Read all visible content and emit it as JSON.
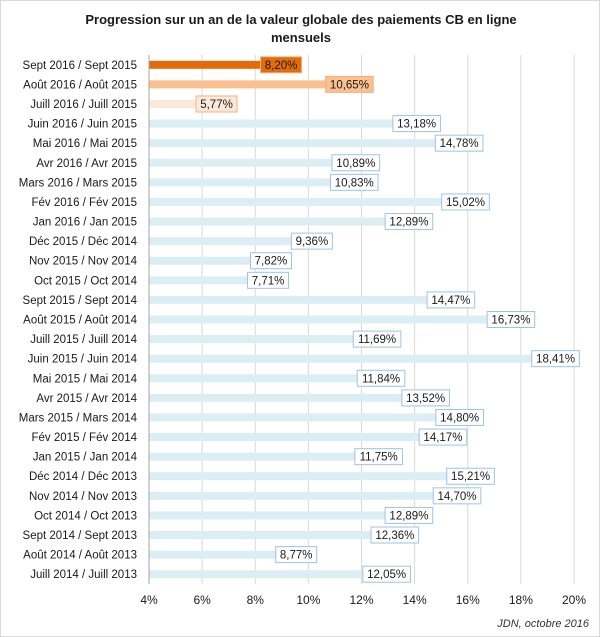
{
  "chart_data": {
    "type": "bar",
    "orientation": "horizontal",
    "title": "Progression sur un an de la valeur globale des paiements CB en ligne mensuels",
    "source": "JDN, octobre 2016",
    "xlabel": "",
    "ylabel": "",
    "xlim": [
      4,
      20
    ],
    "x_ticks": [
      "4%",
      "6%",
      "8%",
      "10%",
      "12%",
      "14%",
      "16%",
      "18%",
      "20%"
    ],
    "x_tick_values": [
      4,
      6,
      8,
      10,
      12,
      14,
      16,
      18,
      20
    ],
    "grid": "vertical",
    "legend": "none",
    "categories": [
      "Sept 2016 / Sept 2015",
      "Août 2016 / Août 2015",
      "Juill 2016 / Juill 2015",
      "Juin 2016 / Juin 2015",
      "Mai 2016 / Mai 2015",
      "Avr 2016 / Avr 2015",
      "Mars 2016 / Mars 2015",
      "Fév 2016 / Fév 2015",
      "Jan 2016 / Jan 2015",
      "Déc 2015 / Déc 2014",
      "Nov 2015 / Nov 2014",
      "Oct 2015 / Oct 2014",
      "Sept 2015 / Sept 2014",
      "Août 2015 / Août 2014",
      "Juill 2015 / Juill 2014",
      "Juin 2015 / Juin 2014",
      "Mai 2015 / Mai 2014",
      "Avr 2015 / Avr 2014",
      "Mars 2015 / Mars 2014",
      "Fév 2015 / Fév 2014",
      "Jan 2015 / Jan 2014",
      "Déc 2014 / Déc 2013",
      "Nov 2014 / Nov 2013",
      "Oct 2014 / Oct 2013",
      "Sept 2014 / Sept 2013",
      "Août 2014 / Août 2013",
      "Juill 2014 / Juill 2013"
    ],
    "values": [
      8.2,
      10.65,
      5.77,
      13.18,
      14.78,
      10.89,
      10.83,
      15.02,
      12.89,
      9.36,
      7.82,
      7.71,
      14.47,
      16.73,
      11.69,
      18.41,
      11.84,
      13.52,
      14.8,
      14.17,
      11.75,
      15.21,
      14.7,
      12.89,
      12.36,
      8.77,
      12.05
    ],
    "labels": [
      "8,20%",
      "10,65%",
      "5,77%",
      "13,18%",
      "14,78%",
      "10,89%",
      "10,83%",
      "15,02%",
      "12,89%",
      "9,36%",
      "7,82%",
      "7,71%",
      "14,47%",
      "16,73%",
      "11,69%",
      "18,41%",
      "11,84%",
      "13,52%",
      "14,80%",
      "14,17%",
      "11,75%",
      "15,21%",
      "14,70%",
      "12,89%",
      "12,36%",
      "8,77%",
      "12,05%"
    ],
    "colors": {
      "highlight_1": "#e36c0a",
      "highlight_2": "#fac090",
      "highlight_3": "#fde9d9",
      "default": "#dbeef4",
      "label_border_default": "#9dc3e6",
      "label_border_highlight": "#f4b183",
      "grid": "#d9d9d9"
    },
    "bar_color_keys": [
      "highlight_1",
      "highlight_2",
      "highlight_3",
      "default",
      "default",
      "default",
      "default",
      "default",
      "default",
      "default",
      "default",
      "default",
      "default",
      "default",
      "default",
      "default",
      "default",
      "default",
      "default",
      "default",
      "default",
      "default",
      "default",
      "default",
      "default",
      "default",
      "default"
    ]
  }
}
